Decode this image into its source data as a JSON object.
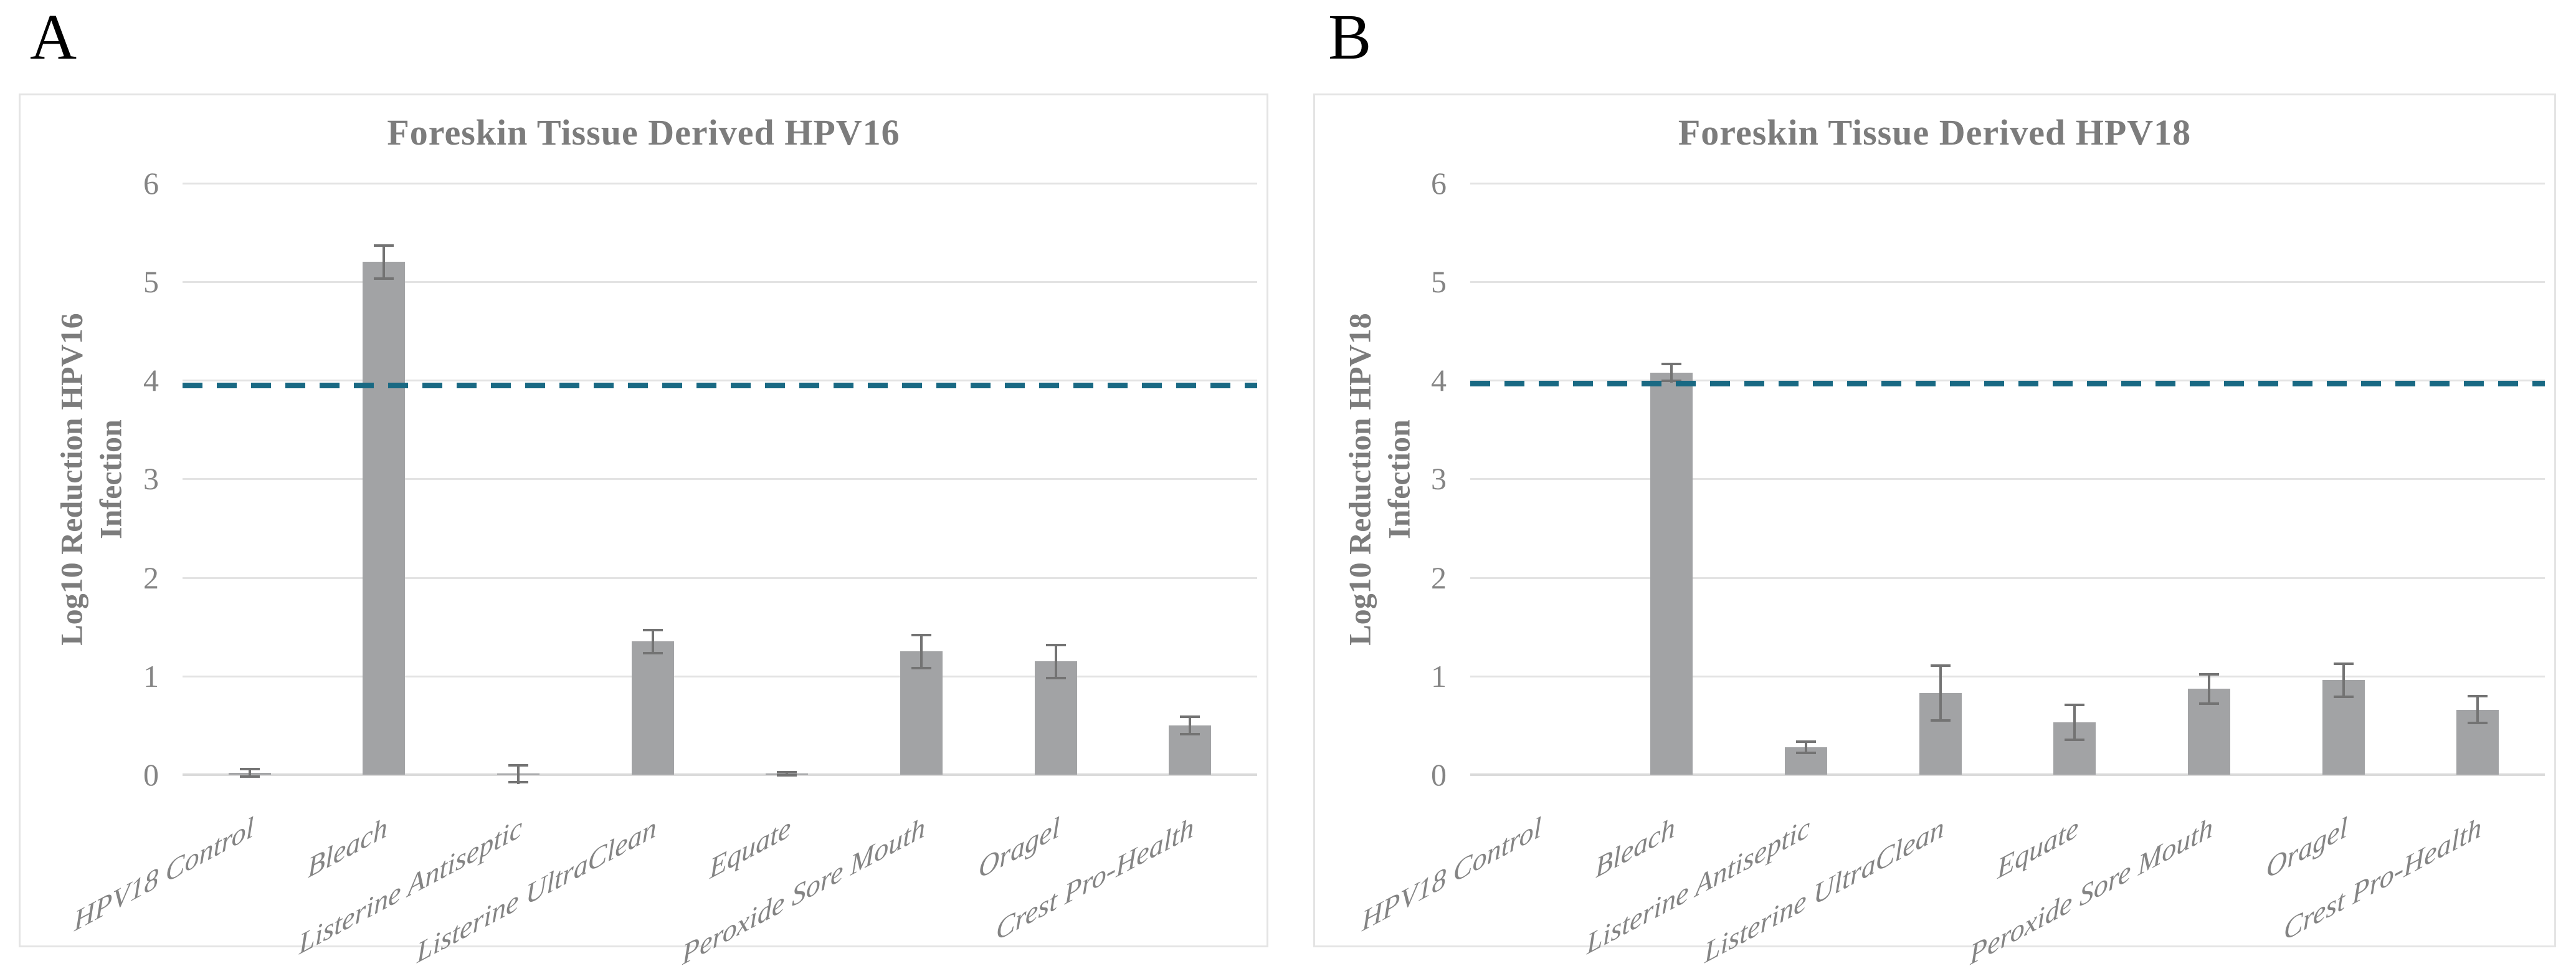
{
  "figure": {
    "panel_letters": [
      "A",
      "B"
    ],
    "bar_color": "#A2A3A5",
    "error_bar_color": "#737373",
    "threshold_line_color": "#196983",
    "gridline_color": "#E3E3E3",
    "text_color_titles": "#7C7C7C",
    "text_color_ticks": "#848484"
  },
  "chart_data": [
    {
      "type": "bar",
      "title": "Foreskin Tissue Derived HPV16",
      "ylabel": "Log10 Reduction HPV16\nInfection",
      "xlabel": "",
      "ylim": [
        0,
        6
      ],
      "yticks": [
        0,
        1,
        2,
        3,
        4,
        5,
        6
      ],
      "grid": true,
      "legend": "none",
      "categories": [
        "HPV18 Control",
        "Bleach",
        "Listerine Antiseptic",
        "Listerine UltraClean",
        "Equate",
        "Peroxide Sore Mouth",
        "Oragel",
        "Crest Pro-Health"
      ],
      "values": [
        0.02,
        5.2,
        0.01,
        1.35,
        0.01,
        1.25,
        1.15,
        0.5
      ],
      "errors": [
        0.05,
        0.18,
        0.1,
        0.13,
        0.03,
        0.18,
        0.18,
        0.1
      ],
      "threshold_dashed_line_y": 3.95
    },
    {
      "type": "bar",
      "title": "Foreskin Tissue Derived HPV18",
      "ylabel": "Log10 Reduction HPV18\nInfection",
      "xlabel": "",
      "ylim": [
        0,
        6
      ],
      "yticks": [
        0,
        1,
        2,
        3,
        4,
        5,
        6
      ],
      "grid": true,
      "legend": "none",
      "categories": [
        "HPV18 Control",
        "Bleach",
        "Listerine Antiseptic",
        "Listerine UltraClean",
        "Equate",
        "Peroxide Sore Mouth",
        "Oragel",
        "Crest Pro-Health"
      ],
      "values": [
        0,
        4.08,
        0.28,
        0.83,
        0.53,
        0.87,
        0.96,
        0.66
      ],
      "errors": [
        0,
        0.1,
        0.07,
        0.29,
        0.19,
        0.16,
        0.18,
        0.15
      ],
      "threshold_dashed_line_y": 3.97
    }
  ]
}
